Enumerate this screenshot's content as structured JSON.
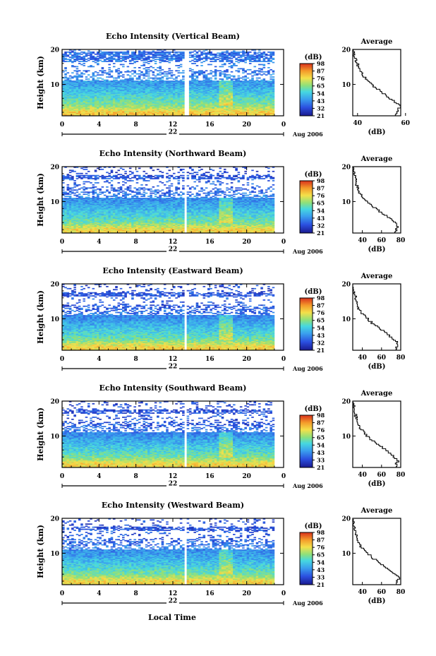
{
  "figure": {
    "xlabel": "Local Time",
    "date_label": "Aug 2006",
    "day_label": "22",
    "colorbar_unit": "(dB)",
    "colors": {
      "background": "#ffffff",
      "axis": "#000000",
      "nodata": "#ffffff"
    }
  },
  "chart_data": [
    {
      "type": "heatmap",
      "title": "Echo Intensity (Vertical Beam)",
      "xlabel": "",
      "ylabel": "Height (km)",
      "xlim": [
        0,
        24
      ],
      "ylim": [
        1,
        20
      ],
      "xticks": [
        "0",
        "4",
        "8",
        "12",
        "16",
        "20",
        "0"
      ],
      "yticks": [
        "10",
        "20"
      ],
      "day_label": "22",
      "date_label": "Aug 2006",
      "colorbar": {
        "label": "(dB)",
        "ticks": [
          "21",
          "32",
          "43",
          "54",
          "65",
          "76",
          "87",
          "98"
        ],
        "range": [
          21,
          98
        ]
      },
      "gaps_hours": [
        [
          13.2,
          13.7
        ]
      ],
      "height_km": [
        2,
        4,
        6,
        8,
        10,
        12,
        14,
        16,
        18
      ],
      "mean_db_by_height": [
        80,
        65,
        58,
        52,
        46,
        43,
        38,
        40,
        38
      ]
    },
    {
      "type": "line",
      "title": "Average",
      "xlabel": "(dB)",
      "ylabel": "",
      "xlim": [
        38,
        58
      ],
      "ylim": [
        1,
        20
      ],
      "xticks": [
        "40",
        "60"
      ],
      "yticks": [
        "10",
        "20"
      ],
      "x": [
        38,
        40,
        42,
        46,
        50,
        54,
        58,
        56
      ],
      "y": [
        20,
        16,
        13,
        10,
        8,
        6,
        4,
        2
      ]
    },
    {
      "type": "heatmap",
      "title": "Echo Intensity (Northward Beam)",
      "xlabel": "",
      "ylabel": "Height (km)",
      "xlim": [
        0,
        24
      ],
      "ylim": [
        1,
        20
      ],
      "xticks": [
        "0",
        "4",
        "8",
        "12",
        "16",
        "20",
        "0"
      ],
      "yticks": [
        "10",
        "20"
      ],
      "day_label": "22",
      "date_label": "Aug 2006",
      "colorbar": {
        "label": "(dB)",
        "ticks": [
          "21",
          "32",
          "43",
          "54",
          "65",
          "76",
          "87",
          "98"
        ],
        "range": [
          21,
          98
        ]
      },
      "gaps_hours": [
        [
          13.2,
          13.6
        ]
      ],
      "height_km": [
        2,
        4,
        6,
        8,
        10,
        12,
        14,
        16,
        18
      ],
      "mean_db_by_height": [
        78,
        63,
        56,
        50,
        45,
        40,
        35,
        36,
        32
      ]
    },
    {
      "type": "line",
      "title": "Average",
      "xlabel": "(dB)",
      "ylabel": "",
      "xlim": [
        30,
        80
      ],
      "ylim": [
        1,
        20
      ],
      "xticks": [
        "40",
        "60",
        "80"
      ],
      "yticks": [
        "10",
        "20"
      ],
      "x": [
        30,
        33,
        36,
        42,
        50,
        60,
        70,
        78,
        75
      ],
      "y": [
        20,
        16,
        13,
        11,
        9,
        7,
        5,
        3,
        2
      ]
    },
    {
      "type": "heatmap",
      "title": "Echo Intensity (Eastward Beam)",
      "xlabel": "",
      "ylabel": "Height (km)",
      "xlim": [
        0,
        24
      ],
      "ylim": [
        1,
        20
      ],
      "xticks": [
        "0",
        "4",
        "8",
        "12",
        "16",
        "20",
        "0"
      ],
      "yticks": [
        "10",
        "20"
      ],
      "day_label": "22",
      "date_label": "Aug 2006",
      "colorbar": {
        "label": "(dB)",
        "ticks": [
          "21",
          "32",
          "43",
          "54",
          "65",
          "76",
          "87",
          "98"
        ],
        "range": [
          21,
          98
        ]
      },
      "gaps_hours": [
        [
          13.2,
          13.6
        ]
      ],
      "height_km": [
        2,
        4,
        6,
        8,
        10,
        12,
        14,
        16,
        18
      ],
      "mean_db_by_height": [
        78,
        63,
        56,
        50,
        44,
        38,
        34,
        35,
        32
      ]
    },
    {
      "type": "line",
      "title": "Average",
      "xlabel": "(dB)",
      "ylabel": "",
      "xlim": [
        30,
        80
      ],
      "ylim": [
        1,
        20
      ],
      "xticks": [
        "40",
        "60",
        "80"
      ],
      "yticks": [
        "10",
        "20"
      ],
      "x": [
        30,
        33,
        36,
        42,
        50,
        60,
        70,
        78,
        75
      ],
      "y": [
        20,
        16,
        13,
        11,
        9,
        7,
        5,
        3,
        2
      ]
    },
    {
      "type": "heatmap",
      "title": "Echo Intensity (Southward Beam)",
      "xlabel": "",
      "ylabel": "Height (km)",
      "xlim": [
        0,
        24
      ],
      "ylim": [
        1,
        20
      ],
      "xticks": [
        "0",
        "4",
        "8",
        "12",
        "16",
        "20",
        "0"
      ],
      "yticks": [
        "10",
        "20"
      ],
      "day_label": "22",
      "date_label": "Aug 2006",
      "colorbar": {
        "label": "(dB)",
        "ticks": [
          "21",
          "33",
          "43",
          "54",
          "65",
          "76",
          "87",
          "98"
        ],
        "range": [
          21,
          98
        ]
      },
      "gaps_hours": [
        [
          13.2,
          13.6
        ]
      ],
      "height_km": [
        2,
        4,
        6,
        8,
        10,
        12,
        14,
        16,
        18
      ],
      "mean_db_by_height": [
        78,
        63,
        56,
        50,
        44,
        38,
        34,
        35,
        32
      ]
    },
    {
      "type": "line",
      "title": "Average",
      "xlabel": "(dB)",
      "ylabel": "",
      "xlim": [
        30,
        80
      ],
      "ylim": [
        1,
        20
      ],
      "xticks": [
        "40",
        "60",
        "80"
      ],
      "yticks": [
        "10",
        "20"
      ],
      "x": [
        30,
        33,
        36,
        42,
        50,
        60,
        70,
        78,
        75
      ],
      "y": [
        20,
        16,
        13,
        11,
        9,
        7,
        5,
        3,
        2
      ]
    },
    {
      "type": "heatmap",
      "title": "Echo Intensity (Westward Beam)",
      "xlabel": "Local Time",
      "ylabel": "Height (km)",
      "xlim": [
        0,
        24
      ],
      "ylim": [
        1,
        20
      ],
      "xticks": [
        "0",
        "4",
        "8",
        "12",
        "16",
        "20",
        "0"
      ],
      "yticks": [
        "10",
        "20"
      ],
      "day_label": "22",
      "date_label": "Aug 2006",
      "colorbar": {
        "label": "(dB)",
        "ticks": [
          "21",
          "33",
          "43",
          "54",
          "65",
          "76",
          "87",
          "98"
        ],
        "range": [
          21,
          98
        ]
      },
      "gaps_hours": [
        [
          13.2,
          13.6
        ]
      ],
      "height_km": [
        2,
        4,
        6,
        8,
        10,
        12,
        14,
        16,
        18
      ],
      "mean_db_by_height": [
        78,
        63,
        56,
        50,
        45,
        40,
        35,
        36,
        32
      ]
    },
    {
      "type": "line",
      "title": "Average",
      "xlabel": "(dB)",
      "ylabel": "",
      "xlim": [
        30,
        80
      ],
      "ylim": [
        1,
        20
      ],
      "xticks": [
        "40",
        "60",
        "80"
      ],
      "yticks": [
        "10",
        "20"
      ],
      "x": [
        30,
        33,
        36,
        42,
        50,
        60,
        70,
        78,
        75
      ],
      "y": [
        20,
        16,
        13,
        11,
        9,
        7,
        5,
        3,
        2
      ]
    }
  ]
}
